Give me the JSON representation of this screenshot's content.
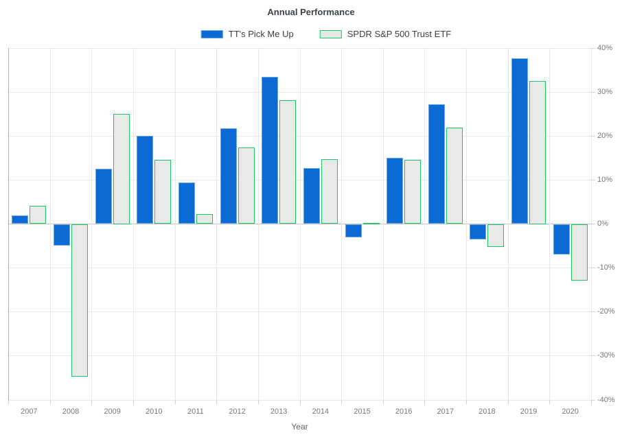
{
  "title": "Annual Performance",
  "x_axis_title": "Year",
  "colors": {
    "series1_fill": "#0b6ad3",
    "series1_border": "#6aa7e0",
    "series2_fill": "#e8eae8",
    "series2_border": "#1fc463",
    "grid": "#e7e7e7",
    "zero_line": "#c2c2c2",
    "tick_text": "#777777"
  },
  "chart_data": {
    "type": "bar",
    "title": "Annual Performance",
    "xlabel": "Year",
    "ylabel": "",
    "categories": [
      "2007",
      "2008",
      "2009",
      "2010",
      "2011",
      "2012",
      "2013",
      "2014",
      "2015",
      "2016",
      "2017",
      "2018",
      "2019",
      "2020"
    ],
    "series": [
      {
        "name": "TT's Pick Me Up",
        "fill": "#0b6ad3",
        "border": "#6aa7e0",
        "values": [
          1.9,
          -4.9,
          12.6,
          20.1,
          9.5,
          21.8,
          33.5,
          12.7,
          -3.0,
          15.1,
          27.2,
          -3.5,
          37.6,
          -6.9
        ]
      },
      {
        "name": "SPDR S&P 500 Trust ETF",
        "fill": "#e8eae8",
        "border": "#1fc463",
        "values": [
          4.2,
          -34.7,
          25.1,
          14.6,
          2.3,
          17.4,
          28.1,
          14.7,
          0.2,
          14.6,
          21.9,
          -5.2,
          32.6,
          -12.8
        ]
      }
    ],
    "ylim": [
      -40,
      40
    ],
    "ytick_step": 10,
    "ytick_suffix": "%",
    "grid": true,
    "legend_position": "top",
    "y_axis_side": "right"
  }
}
